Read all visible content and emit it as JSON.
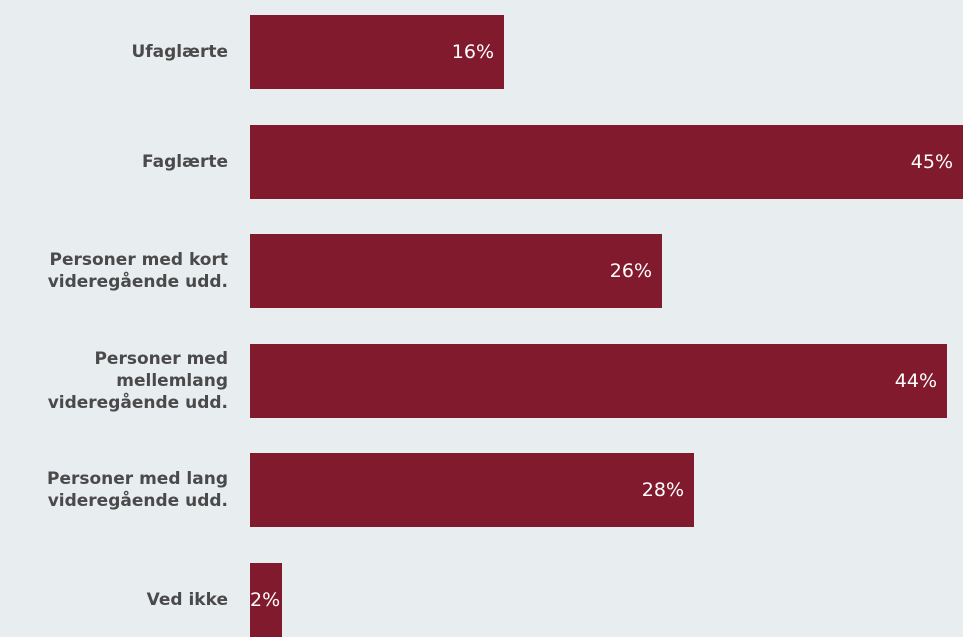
{
  "chart_data": {
    "type": "bar",
    "orientation": "horizontal",
    "categories": [
      "Ufaglærte",
      "Faglærte",
      "Personer med kort\nvideregående udd.",
      "Personer med\nmellemlang\nvideregående udd.",
      "Personer med lang\nvideregående udd.",
      "Ved ikke"
    ],
    "values": [
      16,
      45,
      26,
      44,
      28,
      2
    ],
    "value_labels": [
      "16%",
      "45%",
      "26%",
      "44%",
      "28%",
      "2%"
    ],
    "title": "",
    "xlabel": "",
    "ylabel": "",
    "xlim": [
      0,
      45
    ],
    "grid": false,
    "legend": "none"
  },
  "colors": {
    "background": "#e8edf0",
    "bar": "#821a2e",
    "category_text": "#4a4a4a",
    "value_text": "#ffffff"
  }
}
